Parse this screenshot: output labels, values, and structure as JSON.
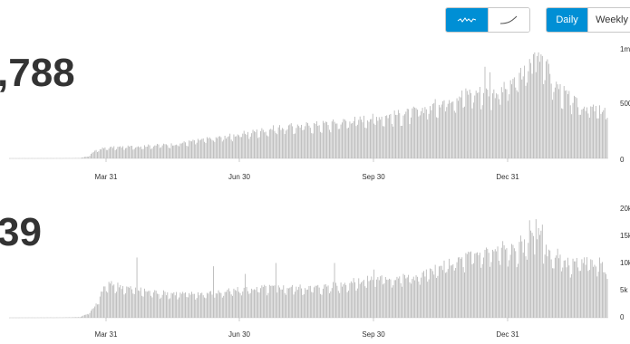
{
  "controls": {
    "scale_toggle": [
      {
        "name": "linear-scale",
        "icon": "wave-line-icon",
        "active": true
      },
      {
        "name": "log-scale",
        "icon": "curve-line-icon",
        "active": false
      }
    ],
    "period_toggle": [
      {
        "label": "Daily",
        "active": true
      },
      {
        "label": "Weekly",
        "active": false
      }
    ]
  },
  "colors": {
    "bar": "#b5b5b5",
    "accent": "#008fd5",
    "axis": "#333333"
  },
  "chart_data": [
    {
      "type": "bar",
      "headline": ",788",
      "x_ticks": [
        "Mar 31",
        "Jun 30",
        "Sep 30",
        "Dec 31"
      ],
      "y_ticks": [
        "1m",
        "500",
        "0"
      ],
      "ylim": [
        0,
        1000000
      ],
      "anchors": [
        [
          0,
          0.001
        ],
        [
          40,
          0.002
        ],
        [
          55,
          0.003
        ],
        [
          62,
          0.02
        ],
        [
          66,
          0.06
        ],
        [
          72,
          0.09
        ],
        [
          80,
          0.1
        ],
        [
          100,
          0.11
        ],
        [
          130,
          0.13
        ],
        [
          150,
          0.17
        ],
        [
          170,
          0.2
        ],
        [
          190,
          0.24
        ],
        [
          210,
          0.28
        ],
        [
          230,
          0.3
        ],
        [
          250,
          0.32
        ],
        [
          270,
          0.35
        ],
        [
          290,
          0.38
        ],
        [
          310,
          0.41
        ],
        [
          330,
          0.47
        ],
        [
          345,
          0.55
        ],
        [
          360,
          0.6
        ],
        [
          370,
          0.61
        ],
        [
          380,
          0.6
        ],
        [
          390,
          0.64
        ],
        [
          395,
          0.7
        ],
        [
          400,
          0.72
        ],
        [
          405,
          0.8
        ],
        [
          410,
          0.83
        ],
        [
          412,
          0.97
        ],
        [
          418,
          0.96
        ],
        [
          425,
          0.72
        ],
        [
          435,
          0.6
        ],
        [
          445,
          0.5
        ],
        [
          455,
          0.46
        ],
        [
          462,
          0.44
        ],
        [
          470,
          0.44
        ]
      ],
      "peaks": [
        [
          373,
          0.83
        ],
        [
          377,
          0.78
        ],
        [
          401,
          0.82
        ],
        [
          408,
          0.9
        ],
        [
          412,
          0.96
        ],
        [
          415,
          0.96
        ],
        [
          421,
          0.88
        ]
      ]
    },
    {
      "type": "bar",
      "headline": "39",
      "x_ticks": [
        "Mar 31",
        "Jun 30",
        "Sep 30",
        "Dec 31"
      ],
      "y_ticks": [
        "20k",
        "15k",
        "10k",
        "5k",
        "0"
      ],
      "ylim": [
        0,
        20000
      ],
      "anchors": [
        [
          0,
          0.001
        ],
        [
          40,
          0.002
        ],
        [
          55,
          0.006
        ],
        [
          62,
          0.04
        ],
        [
          67,
          0.1
        ],
        [
          71,
          0.19
        ],
        [
          74,
          0.28
        ],
        [
          78,
          0.31
        ],
        [
          85,
          0.3
        ],
        [
          95,
          0.27
        ],
        [
          105,
          0.25
        ],
        [
          120,
          0.23
        ],
        [
          140,
          0.22
        ],
        [
          160,
          0.23
        ],
        [
          175,
          0.25
        ],
        [
          190,
          0.27
        ],
        [
          205,
          0.28
        ],
        [
          220,
          0.28
        ],
        [
          240,
          0.28
        ],
        [
          255,
          0.3
        ],
        [
          270,
          0.33
        ],
        [
          285,
          0.36
        ],
        [
          300,
          0.37
        ],
        [
          320,
          0.38
        ],
        [
          330,
          0.42
        ],
        [
          345,
          0.5
        ],
        [
          360,
          0.57
        ],
        [
          375,
          0.61
        ],
        [
          385,
          0.62
        ],
        [
          395,
          0.63
        ],
        [
          403,
          0.65
        ],
        [
          410,
          0.76
        ],
        [
          416,
          0.75
        ],
        [
          422,
          0.62
        ],
        [
          430,
          0.54
        ],
        [
          440,
          0.5
        ],
        [
          450,
          0.5
        ],
        [
          460,
          0.51
        ],
        [
          466,
          0.46
        ],
        [
          470,
          0.45
        ]
      ],
      "peaks": [
        [
          100,
          0.55
        ],
        [
          160,
          0.47
        ],
        [
          185,
          0.4
        ],
        [
          209,
          0.5
        ],
        [
          255,
          0.5
        ],
        [
          286,
          0.44
        ],
        [
          373,
          0.62
        ],
        [
          387,
          0.7
        ],
        [
          401,
          0.75
        ],
        [
          408,
          0.89
        ],
        [
          413,
          0.9
        ],
        [
          418,
          0.85
        ],
        [
          430,
          0.63
        ],
        [
          450,
          0.5
        ],
        [
          463,
          0.55
        ]
      ]
    }
  ]
}
